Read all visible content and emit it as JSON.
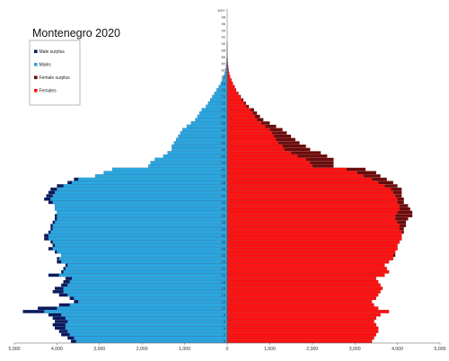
{
  "chart_data": {
    "type": "bar",
    "orientation": "horizontal-pyramid",
    "title": "Montenegro 2020",
    "x_ticks": [
      "5,000",
      "4,000",
      "3,000",
      "2,000",
      "1,000",
      "0",
      "1,000",
      "2,000",
      "3,000",
      "4,000",
      "5,000"
    ],
    "xlim": [
      -5000,
      5000
    ],
    "legend_position": "top-left",
    "legend": [
      {
        "label": "Male surplus",
        "color": "#0a1a5c"
      },
      {
        "label": "Males",
        "color": "#2aa6e0"
      },
      {
        "label": "Female surplus",
        "color": "#6b0b0b"
      },
      {
        "label": "Females",
        "color": "#ff1111"
      }
    ],
    "age_labels": [
      "0",
      "2",
      "4",
      "6",
      "8",
      "10",
      "12",
      "14",
      "16",
      "18",
      "20",
      "22",
      "24",
      "26",
      "28",
      "30",
      "32",
      "34",
      "36",
      "38",
      "40",
      "42",
      "44",
      "46",
      "48",
      "50",
      "52",
      "54",
      "56",
      "58",
      "60",
      "62",
      "64",
      "66",
      "68",
      "70",
      "72",
      "74",
      "76",
      "78",
      "80",
      "82",
      "84",
      "86",
      "88",
      "90",
      "92",
      "94",
      "96",
      "98",
      "100+"
    ],
    "ages": [
      0,
      1,
      2,
      3,
      4,
      5,
      6,
      7,
      8,
      9,
      10,
      11,
      12,
      13,
      14,
      15,
      16,
      17,
      18,
      19,
      20,
      21,
      22,
      23,
      24,
      25,
      26,
      27,
      28,
      29,
      30,
      31,
      32,
      33,
      34,
      35,
      36,
      37,
      38,
      39,
      40,
      41,
      42,
      43,
      44,
      45,
      46,
      47,
      48,
      49,
      50,
      51,
      52,
      53,
      54,
      55,
      56,
      57,
      58,
      59,
      60,
      61,
      62,
      63,
      64,
      65,
      66,
      67,
      68,
      69,
      70,
      71,
      72,
      73,
      74,
      75,
      76,
      77,
      78,
      79,
      80,
      81,
      82,
      83,
      84,
      85,
      86,
      87,
      88,
      89,
      90,
      91,
      92,
      93,
      94,
      95,
      96,
      97,
      98,
      99,
      100
    ],
    "series": [
      {
        "name": "Males",
        "values": [
          3550,
          3600,
          3700,
          3750,
          3800,
          3800,
          3750,
          3800,
          3900,
          4300,
          4000,
          3700,
          3500,
          3600,
          3750,
          3850,
          3850,
          3750,
          3700,
          3650,
          3950,
          3850,
          3800,
          3750,
          3900,
          3950,
          3900,
          4000,
          4100,
          4050,
          4100,
          4200,
          4200,
          4150,
          4100,
          4100,
          4050,
          4000,
          4000,
          4000,
          4050,
          4050,
          4100,
          4150,
          4100,
          4050,
          4000,
          3850,
          3650,
          3500,
          3100,
          2900,
          2700,
          1850,
          1800,
          1700,
          1500,
          1400,
          1300,
          1300,
          1250,
          1200,
          1150,
          1100,
          1050,
          950,
          850,
          750,
          700,
          650,
          600,
          500,
          450,
          400,
          350,
          300,
          250,
          200,
          150,
          120,
          90,
          60,
          40,
          30,
          20,
          15,
          10,
          8,
          5,
          3,
          2
        ]
      },
      {
        "name": "Females",
        "values": [
          3400,
          3450,
          3500,
          3550,
          3550,
          3500,
          3450,
          3500,
          3600,
          3800,
          3550,
          3450,
          3400,
          3500,
          3550,
          3600,
          3650,
          3600,
          3550,
          3500,
          3700,
          3800,
          3750,
          3700,
          3800,
          3900,
          3900,
          3950,
          4000,
          4000,
          4050,
          4100,
          4100,
          4100,
          4050,
          4050,
          4000,
          3950,
          3950,
          4000,
          4050,
          4050,
          4000,
          4000,
          3950,
          3900,
          3850,
          3700,
          3550,
          3400,
          3200,
          3050,
          2800,
          2000,
          1950,
          1850,
          1650,
          1500,
          1350,
          1300,
          1200,
          1150,
          1100,
          1050,
          1000,
          900,
          800,
          700,
          650,
          600,
          550,
          450,
          400,
          350,
          300,
          250,
          200,
          170,
          130,
          100,
          70,
          50,
          35,
          25,
          15,
          10,
          8,
          5,
          4,
          2,
          1
        ]
      },
      {
        "name": "Male surplus",
        "values": [
          120,
          150,
          200,
          200,
          250,
          300,
          300,
          300,
          300,
          500,
          450,
          250,
          100,
          100,
          200,
          250,
          200,
          150,
          150,
          150,
          250,
          50,
          50,
          50,
          100,
          50,
          0,
          50,
          100,
          50,
          50,
          100,
          100,
          50,
          50,
          50,
          50,
          50,
          50,
          0,
          0,
          0,
          100,
          150,
          150,
          150,
          150,
          150,
          100,
          100,
          0,
          0,
          0,
          0,
          0,
          0,
          0,
          0,
          0,
          0,
          0,
          0,
          0,
          0,
          0,
          0,
          0,
          0,
          0,
          0,
          0,
          0,
          0,
          0,
          0,
          0,
          0,
          0,
          0,
          0,
          0,
          0,
          0,
          0,
          0,
          0,
          0,
          0,
          0,
          0,
          0
        ]
      },
      {
        "name": "Female surplus",
        "values": [
          0,
          0,
          0,
          0,
          0,
          0,
          0,
          0,
          0,
          0,
          0,
          0,
          0,
          0,
          0,
          0,
          0,
          0,
          0,
          0,
          0,
          0,
          0,
          0,
          0,
          0,
          50,
          0,
          0,
          0,
          0,
          0,
          0,
          50,
          100,
          150,
          200,
          300,
          400,
          350,
          250,
          200,
          150,
          150,
          150,
          200,
          250,
          300,
          350,
          350,
          400,
          450,
          450,
          500,
          550,
          650,
          700,
          700,
          600,
          550,
          500,
          450,
          400,
          350,
          300,
          250,
          200,
          150,
          120,
          100,
          80,
          60,
          40,
          30,
          20,
          15,
          10,
          8,
          5,
          3,
          2,
          1,
          1,
          1,
          0,
          0,
          0,
          0,
          0,
          0,
          0
        ]
      }
    ]
  }
}
